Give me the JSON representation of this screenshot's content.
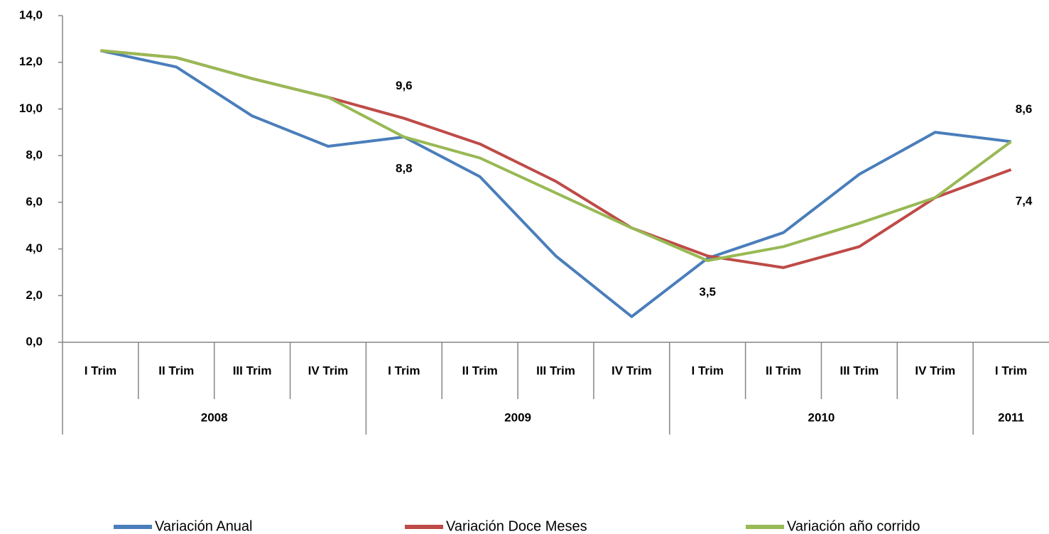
{
  "chart_data": {
    "type": "line",
    "categories": [
      "I Trim",
      "II Trim",
      "III Trim",
      "IV Trim",
      "I Trim",
      "II Trim",
      "III Trim",
      "IV Trim",
      "I Trim",
      "II Trim",
      "III Trim",
      "IV Trim",
      "I Trim"
    ],
    "years": [
      "2008",
      "2008",
      "2008",
      "2008",
      "2009",
      "2009",
      "2009",
      "2009",
      "2010",
      "2010",
      "2010",
      "2010",
      "2011"
    ],
    "ylim": [
      0,
      14
    ],
    "yticks": [
      {
        "value": 0,
        "label": "0,0"
      },
      {
        "value": 2,
        "label": "2,0"
      },
      {
        "value": 4,
        "label": "4,0"
      },
      {
        "value": 6,
        "label": "6,0"
      },
      {
        "value": 8,
        "label": "8,0"
      },
      {
        "value": 10,
        "label": "10,0"
      },
      {
        "value": 12,
        "label": "12,0"
      },
      {
        "value": 14,
        "label": "14,0"
      }
    ],
    "grid": false,
    "legend": "bottom",
    "series": [
      {
        "name": "Variación Anual",
        "color": "#4a7ebb",
        "values": [
          12.5,
          11.8,
          9.7,
          8.4,
          8.8,
          7.1,
          3.7,
          1.1,
          3.6,
          4.7,
          7.2,
          9.0,
          8.6
        ],
        "value_labels": [
          null,
          null,
          null,
          null,
          "8,8",
          null,
          null,
          null,
          null,
          null,
          null,
          null,
          "8,6"
        ]
      },
      {
        "name": "Variación Doce Meses",
        "color": "#be4b48",
        "values": [
          12.5,
          12.2,
          11.3,
          10.5,
          9.6,
          8.5,
          6.9,
          4.9,
          3.7,
          3.2,
          4.1,
          6.2,
          7.4
        ],
        "value_labels": [
          null,
          null,
          null,
          null,
          "9,6",
          null,
          null,
          null,
          null,
          null,
          null,
          null,
          "7,4"
        ]
      },
      {
        "name": "Variación año corrido",
        "color": "#98b954",
        "values": [
          12.5,
          12.2,
          11.3,
          10.5,
          8.8,
          7.9,
          6.4,
          4.9,
          3.5,
          4.1,
          5.1,
          6.2,
          8.6
        ],
        "value_labels": [
          null,
          null,
          null,
          null,
          null,
          null,
          null,
          null,
          "3,5",
          null,
          null,
          null,
          null
        ]
      }
    ]
  }
}
